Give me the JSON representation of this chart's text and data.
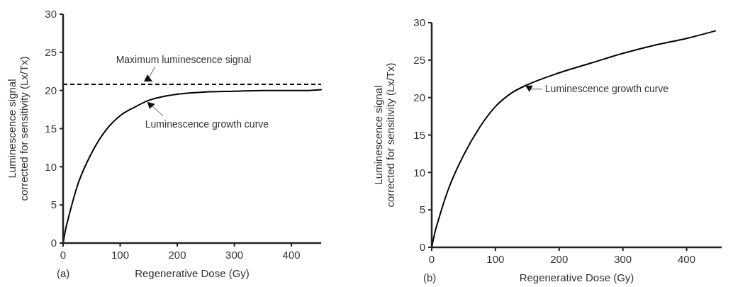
{
  "chart_data": [
    {
      "type": "line",
      "xlabel": "Regenerative Dose (Gy)",
      "ylabel": "Luminescence signal\ncorrected for sensitivity (Lx/Tx)",
      "xlim": [
        0,
        452
      ],
      "ylim": [
        0,
        30
      ],
      "xticks": [
        0,
        100,
        200,
        300,
        400
      ],
      "yticks": [
        0,
        5,
        10,
        15,
        20,
        25,
        30
      ],
      "grid": false,
      "x": [
        0,
        5,
        10,
        25,
        50,
        75,
        100,
        125,
        150,
        175,
        200,
        250,
        300,
        350,
        400,
        430,
        452
      ],
      "series": [
        {
          "color": "#000000",
          "values": [
            0,
            2,
            3.5,
            7.5,
            11.8,
            14.8,
            16.7,
            17.8,
            18.7,
            19.2,
            19.5,
            19.8,
            19.9,
            20,
            20,
            20,
            20.1
          ]
        }
      ],
      "ref_lines": [
        {
          "axis": "y",
          "value": 20.8,
          "label": "Maximum luminescence signal",
          "color": "#000000",
          "line_style": "dashed"
        }
      ],
      "annotations": [
        "(a)",
        {
          "text": "Luminescence growth curve",
          "x": 150,
          "y": 18.7
        }
      ]
    },
    {
      "type": "line",
      "xlabel": "Regenerative Dose (Gy)",
      "ylabel": "Luminescence signal\ncorrected for sensitivity (Lx/Tx)",
      "xlim": [
        0,
        455
      ],
      "ylim": [
        0,
        30
      ],
      "xticks": [
        0,
        100,
        200,
        300,
        400
      ],
      "yticks": [
        0,
        5,
        10,
        15,
        20,
        25,
        30
      ],
      "grid": false,
      "x": [
        0,
        5,
        10,
        25,
        50,
        75,
        100,
        125,
        150,
        200,
        250,
        300,
        350,
        400,
        445
      ],
      "series": [
        {
          "color": "#000000",
          "values": [
            0,
            2,
            3.5,
            7.5,
            12.3,
            16,
            18.8,
            20.6,
            21.7,
            23.3,
            24.6,
            25.9,
            27,
            27.9,
            28.9
          ]
        }
      ],
      "annotations": [
        "(b)",
        {
          "text": "Luminescence growth curve",
          "x": 150,
          "y": 21.7
        }
      ]
    }
  ]
}
